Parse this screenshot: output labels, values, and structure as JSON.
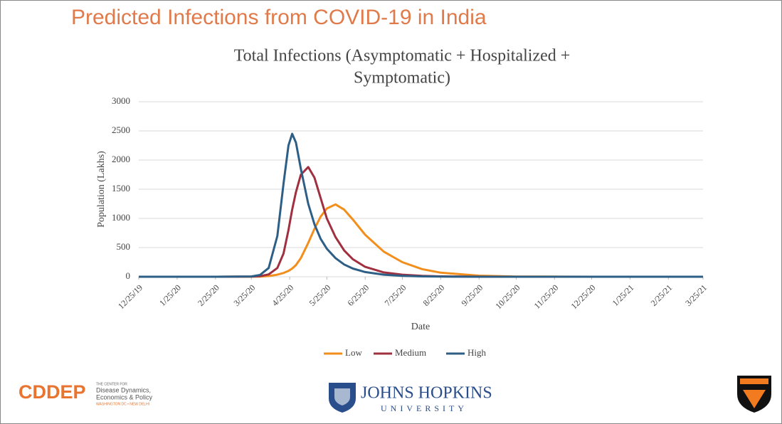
{
  "slide_title": "Predicted Infections from COVID-19 in India",
  "chart_data": {
    "type": "line",
    "title": [
      "Total Infections (Asymptomatic + Hospitalized +",
      "Symptomatic)"
    ],
    "y_label": "Population (Lakhs)",
    "x_label": "Date",
    "x": [
      "12/25/19",
      "2/25/20",
      "3/25/20",
      "4/1/20",
      "4/8/20",
      "4/15/20",
      "4/20/20",
      "4/24/20",
      "4/27/20",
      "4/30/20",
      "5/4/20",
      "5/10/20",
      "5/15/20",
      "5/20/20",
      "5/25/20",
      "6/1/20",
      "6/8/20",
      "6/15/20",
      "6/25/20",
      "7/10/20",
      "7/25/20",
      "8/10/20",
      "8/25/20",
      "9/25/20",
      "10/25/20",
      "12/25/20",
      "3/25/21"
    ],
    "xlim": [
      "12/25/19",
      "3/25/21"
    ],
    "xticks": [
      "12/25/19",
      "1/25/20",
      "2/25/20",
      "3/25/20",
      "4/25/20",
      "5/25/20",
      "6/25/20",
      "7/25/20",
      "8/25/20",
      "9/25/20",
      "10/25/20",
      "11/25/20",
      "12/25/20",
      "1/25/21",
      "2/25/21",
      "3/25/21"
    ],
    "ylim": [
      0,
      3000
    ],
    "yticks": [
      0,
      500,
      1000,
      1500,
      2000,
      2500,
      3000
    ],
    "grid": true,
    "legend": "bottom",
    "series": [
      {
        "name": "Low",
        "color": "#f28e1c",
        "values": [
          0,
          0,
          1,
          3,
          12,
          35,
          65,
          100,
          140,
          200,
          320,
          580,
          820,
          1030,
          1170,
          1240,
          1150,
          980,
          720,
          430,
          250,
          130,
          70,
          18,
          4,
          0,
          0
        ]
      },
      {
        "name": "Medium",
        "color": "#a0303f",
        "values": [
          0,
          0,
          2,
          10,
          40,
          150,
          400,
          800,
          1150,
          1450,
          1750,
          1880,
          1700,
          1350,
          1000,
          680,
          450,
          300,
          170,
          75,
          35,
          15,
          6,
          1,
          0,
          0,
          0
        ]
      },
      {
        "name": "High",
        "color": "#2d5f86",
        "values": [
          0,
          0,
          5,
          30,
          150,
          700,
          1600,
          2250,
          2450,
          2300,
          1850,
          1250,
          900,
          650,
          480,
          320,
          210,
          140,
          80,
          35,
          15,
          6,
          2,
          0,
          0,
          0,
          0
        ]
      }
    ]
  },
  "footer": {
    "cddep": "CDDEP",
    "cddep_small": "THE CENTER FOR",
    "cddep_line1": "Disease Dynamics,",
    "cddep_line2": "Economics & Policy",
    "cddep_cities": "WASHINGTON DC • NEW DELHI",
    "jhu": "JOHNS HOPKINS",
    "jhu_sub": "UNIVERSITY"
  }
}
